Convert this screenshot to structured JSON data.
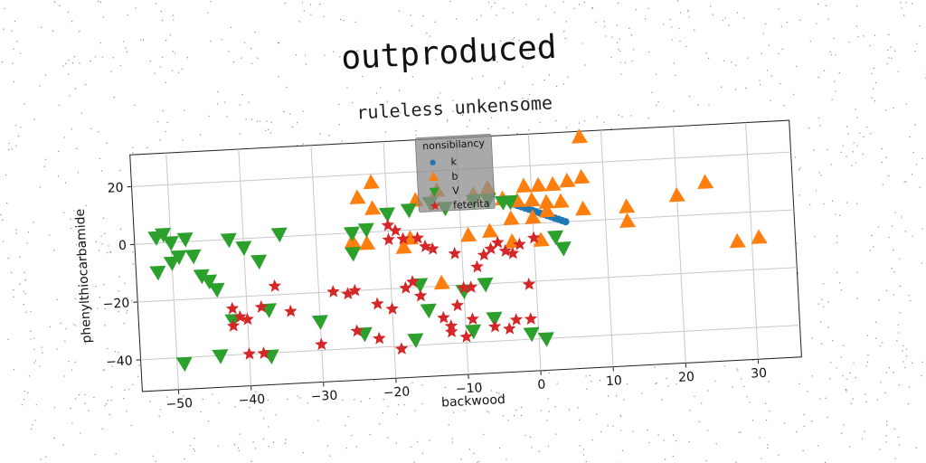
{
  "chart_data": {
    "type": "scatter",
    "title": "outproduced",
    "subtitle": "ruleless unkensome",
    "xlabel": "backwood",
    "ylabel": "phenylthiocarbamide",
    "xlim": [
      -55,
      36
    ],
    "ylim": [
      -51,
      31
    ],
    "xticks": [
      -50,
      -40,
      -30,
      -20,
      -10,
      0,
      10,
      20,
      30
    ],
    "yticks": [
      -40,
      -20,
      0,
      20
    ],
    "grid": true,
    "legend": {
      "title": "nonsibilancy",
      "placement": "upper-center"
    },
    "rotation_deg": -3,
    "colors": {
      "k": "#1f77b4",
      "b": "#ff7f0e",
      "V": "#2ca02c",
      "feterita": "#d62728"
    },
    "series": [
      {
        "name": "k",
        "marker": "circle",
        "color": "#1f77b4",
        "x": [
          -3,
          -2.5,
          -2,
          -1.5,
          -1,
          -0.5,
          0,
          0.5,
          1,
          1.5,
          2,
          2.5,
          3,
          3.5,
          4,
          4.5
        ],
        "y": [
          7.5,
          7,
          6.5,
          6,
          5.5,
          5,
          4.5,
          4,
          3.5,
          3,
          2.5,
          2,
          1.5,
          1,
          0.5,
          0
        ]
      },
      {
        "name": "b",
        "marker": "triangle-up",
        "color": "#ff7f0e",
        "x": [
          7,
          -22,
          -24,
          -22,
          -16,
          -13,
          -6,
          -8,
          -4,
          -1,
          1,
          3,
          5,
          7,
          -2,
          0,
          2,
          4,
          -3,
          0,
          2,
          -6,
          -18,
          -17,
          -25,
          -23,
          -3,
          1,
          -13,
          13,
          13,
          20,
          24,
          28,
          31,
          7,
          -9
        ],
        "y": [
          29,
          17,
          12,
          8,
          10,
          13,
          13,
          11,
          9,
          13,
          13,
          13,
          14,
          15,
          8,
          8,
          7,
          7,
          2,
          2,
          4,
          -2,
          -6,
          -3,
          -3,
          -4,
          -6,
          -6,
          -19,
          4,
          -1,
          7,
          11,
          -10,
          -9,
          4,
          -3
        ]
      },
      {
        "name": "V",
        "marker": "triangle-down",
        "color": "#2ca02c",
        "x": [
          -52,
          -51,
          -50,
          -49,
          -48,
          -47,
          -46,
          -44,
          -42,
          -40,
          -38,
          -35,
          -25,
          -23,
          -25,
          -20,
          -17,
          -14,
          -12,
          -8,
          -6,
          -4,
          -3,
          3,
          4,
          -52,
          -50,
          -45,
          -42,
          -37,
          -30,
          -24,
          -16,
          -7,
          -15,
          -10,
          -17,
          -9,
          -6,
          -1,
          1,
          -49,
          -44,
          -37
        ],
        "y": [
          2,
          3,
          0,
          -5,
          1,
          -5,
          -12,
          -17,
          0,
          -3,
          -8,
          1,
          0,
          1,
          -7,
          6,
          7,
          9,
          7,
          9,
          9,
          8,
          8,
          -5,
          -9,
          -10,
          -7,
          -14,
          -28,
          -25,
          -30,
          -35,
          -19,
          -20,
          -28,
          -22,
          -38,
          -36,
          -32,
          -38,
          -40,
          -42,
          -40,
          -41
        ]
      },
      {
        "name": "feterita",
        "marker": "star",
        "color": "#d62728",
        "x": [
          -42,
          -41,
          -42,
          -40,
          -40,
          -38,
          -38,
          -36,
          -34,
          -30,
          -28,
          -26,
          -25,
          -25,
          -22,
          -20,
          -20,
          -19,
          -18,
          -17,
          -16,
          -15,
          -14,
          -13,
          -12,
          -11,
          -10,
          -9,
          -8,
          -7,
          -6,
          -5,
          -4,
          -3,
          -2,
          -1,
          0,
          -18,
          -16,
          -20,
          -22,
          -11,
          -9,
          -6,
          -4,
          -3,
          -1,
          -10,
          -12,
          -19
        ],
        "y": [
          -24,
          -27,
          -30,
          -28,
          -40,
          -24,
          -40,
          -17,
          -26,
          -38,
          -20,
          -21,
          -20,
          -34,
          -37,
          -3,
          2,
          0,
          -20,
          -18,
          -3,
          -6,
          -7,
          -31,
          -34,
          -9,
          -21,
          -21,
          -14,
          -10,
          -8,
          -6,
          -9,
          -10,
          -7,
          -21,
          -5,
          -3,
          -23,
          -27,
          -25,
          -27,
          -32,
          -35,
          -36,
          -33,
          -33,
          -38,
          -36,
          -41
        ]
      }
    ]
  }
}
